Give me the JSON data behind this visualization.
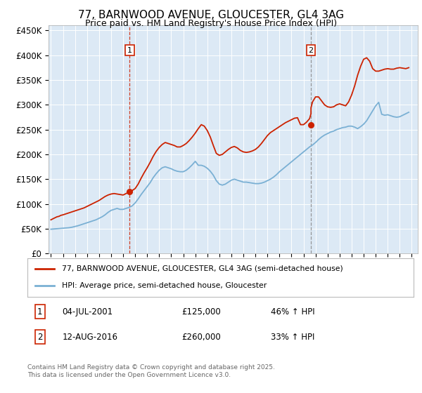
{
  "title": "77, BARNWOOD AVENUE, GLOUCESTER, GL4 3AG",
  "subtitle": "Price paid vs. HM Land Registry's House Price Index (HPI)",
  "background_color": "#dce9f5",
  "line_color_red": "#cc2200",
  "line_color_blue": "#7ab0d4",
  "vline_color": "#cc2200",
  "ylim": [
    0,
    460000
  ],
  "yticks": [
    0,
    50000,
    100000,
    150000,
    200000,
    250000,
    300000,
    350000,
    400000,
    450000
  ],
  "xlim_start": 1994.8,
  "xlim_end": 2025.5,
  "xtick_years": [
    1995,
    1996,
    1997,
    1998,
    1999,
    2000,
    2001,
    2002,
    2003,
    2004,
    2005,
    2006,
    2007,
    2008,
    2009,
    2010,
    2011,
    2012,
    2013,
    2014,
    2015,
    2016,
    2017,
    2018,
    2019,
    2020,
    2021,
    2022,
    2023,
    2024,
    2025
  ],
  "sale1_year": 2001.55,
  "sale1_price": 125000,
  "sale1_label": "1",
  "sale2_year": 2016.62,
  "sale2_price": 260000,
  "sale2_label": "2",
  "legend_line1": "77, BARNWOOD AVENUE, GLOUCESTER, GL4 3AG (semi-detached house)",
  "legend_line2": "HPI: Average price, semi-detached house, Gloucester",
  "footer": "Contains HM Land Registry data © Crown copyright and database right 2025.\nThis data is licensed under the Open Government Licence v3.0.",
  "hpi_data_years": [
    1995.0,
    1995.25,
    1995.5,
    1995.75,
    1996.0,
    1996.25,
    1996.5,
    1996.75,
    1997.0,
    1997.25,
    1997.5,
    1997.75,
    1998.0,
    1998.25,
    1998.5,
    1998.75,
    1999.0,
    1999.25,
    1999.5,
    1999.75,
    2000.0,
    2000.25,
    2000.5,
    2000.75,
    2001.0,
    2001.25,
    2001.5,
    2001.75,
    2002.0,
    2002.25,
    2002.5,
    2002.75,
    2003.0,
    2003.25,
    2003.5,
    2003.75,
    2004.0,
    2004.25,
    2004.5,
    2004.75,
    2005.0,
    2005.25,
    2005.5,
    2005.75,
    2006.0,
    2006.25,
    2006.5,
    2006.75,
    2007.0,
    2007.25,
    2007.5,
    2007.75,
    2008.0,
    2008.25,
    2008.5,
    2008.75,
    2009.0,
    2009.25,
    2009.5,
    2009.75,
    2010.0,
    2010.25,
    2010.5,
    2010.75,
    2011.0,
    2011.25,
    2011.5,
    2011.75,
    2012.0,
    2012.25,
    2012.5,
    2012.75,
    2013.0,
    2013.25,
    2013.5,
    2013.75,
    2014.0,
    2014.25,
    2014.5,
    2014.75,
    2015.0,
    2015.25,
    2015.5,
    2015.75,
    2016.0,
    2016.25,
    2016.5,
    2016.75,
    2017.0,
    2017.25,
    2017.5,
    2017.75,
    2018.0,
    2018.25,
    2018.5,
    2018.75,
    2019.0,
    2019.25,
    2019.5,
    2019.75,
    2020.0,
    2020.25,
    2020.5,
    2020.75,
    2021.0,
    2021.25,
    2021.5,
    2021.75,
    2022.0,
    2022.25,
    2022.5,
    2022.75,
    2023.0,
    2023.25,
    2023.5,
    2023.75,
    2024.0,
    2024.25,
    2024.5,
    2024.75
  ],
  "hpi_data_values": [
    49000,
    49500,
    50000,
    50500,
    51000,
    51500,
    52000,
    53000,
    54500,
    56000,
    58000,
    60000,
    62000,
    64000,
    66000,
    68000,
    71000,
    74000,
    78000,
    83000,
    87000,
    89000,
    91000,
    89000,
    89000,
    91000,
    93000,
    96000,
    102000,
    110000,
    119000,
    127000,
    135000,
    143000,
    153000,
    161000,
    168000,
    173000,
    175000,
    173000,
    171000,
    168000,
    166000,
    165000,
    165000,
    168000,
    173000,
    179000,
    186000,
    178000,
    178000,
    176000,
    172000,
    166000,
    158000,
    147000,
    140000,
    138000,
    140000,
    144000,
    148000,
    150000,
    148000,
    146000,
    144000,
    144000,
    143000,
    142000,
    141000,
    141000,
    142000,
    144000,
    147000,
    150000,
    154000,
    159000,
    165000,
    170000,
    175000,
    180000,
    185000,
    190000,
    195000,
    200000,
    205000,
    210000,
    215000,
    219000,
    224000,
    230000,
    235000,
    239000,
    242000,
    245000,
    247000,
    250000,
    252000,
    254000,
    255000,
    257000,
    257000,
    255000,
    252000,
    256000,
    261000,
    268000,
    278000,
    288000,
    298000,
    305000,
    281000,
    279000,
    280000,
    278000,
    276000,
    275000,
    276000,
    279000,
    282000,
    285000
  ],
  "red_years": [
    1995.0,
    1995.08,
    1995.17,
    1995.25,
    1995.33,
    1995.42,
    1995.5,
    1995.58,
    1995.67,
    1995.75,
    1995.83,
    1995.92,
    1996.0,
    1996.25,
    1996.5,
    1996.75,
    1997.0,
    1997.25,
    1997.5,
    1997.75,
    1998.0,
    1998.25,
    1998.5,
    1998.75,
    1999.0,
    1999.25,
    1999.5,
    1999.75,
    2000.0,
    2000.25,
    2000.5,
    2000.75,
    2001.0,
    2001.25,
    2001.55,
    2001.55,
    2001.75,
    2002.0,
    2002.25,
    2002.5,
    2002.75,
    2003.0,
    2003.25,
    2003.5,
    2003.75,
    2004.0,
    2004.25,
    2004.5,
    2004.75,
    2005.0,
    2005.25,
    2005.5,
    2005.75,
    2006.0,
    2006.25,
    2006.5,
    2006.75,
    2007.0,
    2007.25,
    2007.5,
    2007.75,
    2008.0,
    2008.25,
    2008.5,
    2008.75,
    2009.0,
    2009.25,
    2009.5,
    2009.75,
    2010.0,
    2010.25,
    2010.5,
    2010.75,
    2011.0,
    2011.25,
    2011.5,
    2011.75,
    2012.0,
    2012.25,
    2012.5,
    2012.75,
    2013.0,
    2013.25,
    2013.5,
    2013.75,
    2014.0,
    2014.25,
    2014.5,
    2014.75,
    2015.0,
    2015.25,
    2015.5,
    2015.75,
    2016.0,
    2016.25,
    2016.5,
    2016.62,
    2016.62,
    2016.75,
    2017.0,
    2017.25,
    2017.5,
    2017.75,
    2018.0,
    2018.25,
    2018.5,
    2018.75,
    2019.0,
    2019.25,
    2019.5,
    2019.75,
    2020.0,
    2020.25,
    2020.5,
    2020.75,
    2021.0,
    2021.25,
    2021.5,
    2021.75,
    2022.0,
    2022.25,
    2022.5,
    2022.75,
    2023.0,
    2023.25,
    2023.5,
    2023.75,
    2024.0,
    2024.25,
    2024.5,
    2024.75
  ],
  "red_values": [
    68000,
    69000,
    70000,
    71000,
    72000,
    73000,
    74000,
    74500,
    75000,
    76000,
    77000,
    77500,
    78000,
    80000,
    82000,
    84000,
    86000,
    88000,
    90000,
    92000,
    95000,
    98000,
    101000,
    104000,
    107000,
    111000,
    115000,
    118000,
    120000,
    121000,
    120000,
    119000,
    118000,
    121000,
    125000,
    125000,
    127000,
    131000,
    140000,
    152000,
    163000,
    173000,
    184000,
    196000,
    206000,
    214000,
    220000,
    224000,
    222000,
    220000,
    218000,
    215000,
    215000,
    218000,
    222000,
    228000,
    235000,
    243000,
    252000,
    260000,
    257000,
    248000,
    235000,
    218000,
    202000,
    198000,
    200000,
    205000,
    210000,
    214000,
    216000,
    213000,
    208000,
    205000,
    204000,
    205000,
    207000,
    210000,
    215000,
    222000,
    230000,
    238000,
    244000,
    248000,
    252000,
    256000,
    260000,
    264000,
    267000,
    270000,
    273000,
    274000,
    260000,
    260000,
    265000,
    272000,
    282000,
    294000,
    306000,
    316000,
    316000,
    308000,
    300000,
    296000,
    295000,
    296000,
    300000,
    302000,
    300000,
    298000,
    306000,
    320000,
    338000,
    360000,
    378000,
    392000,
    395000,
    388000,
    373000,
    368000,
    368000,
    370000,
    372000,
    373000,
    372000,
    372000,
    374000,
    375000,
    374000,
    373000,
    375000
  ]
}
